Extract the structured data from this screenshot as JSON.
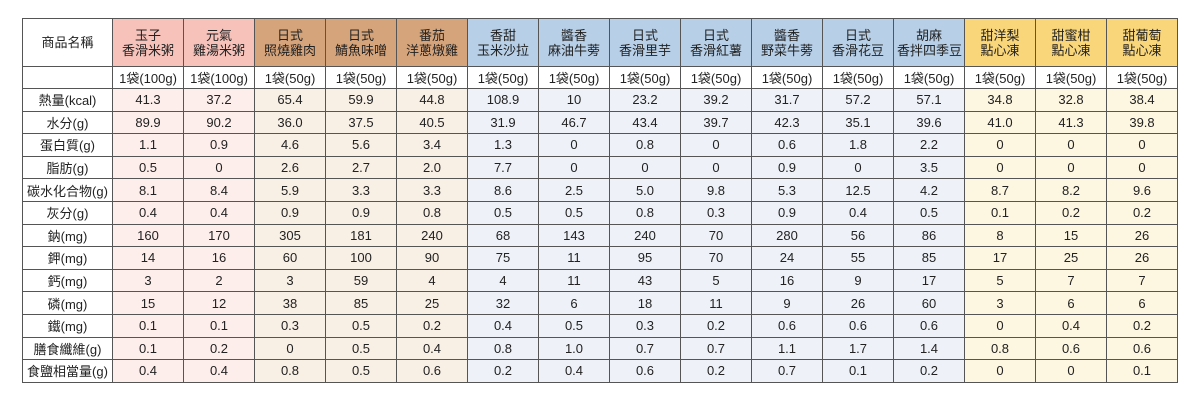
{
  "table": {
    "corner": "商品名稱",
    "products": [
      [
        "玉子",
        "香滑米粥"
      ],
      [
        "元氣",
        "雞湯米粥"
      ],
      [
        "日式",
        "照燒雞肉"
      ],
      [
        "日式",
        "鯖魚味噌"
      ],
      [
        "番茄",
        "洋蔥燉雞"
      ],
      [
        "香甜",
        "玉米沙拉"
      ],
      [
        "醬香",
        "麻油牛蒡"
      ],
      [
        "日式",
        "香滑里芋"
      ],
      [
        "日式",
        "香滑紅薯"
      ],
      [
        "醬香",
        "野菜牛蒡"
      ],
      [
        "日式",
        "香滑花豆"
      ],
      [
        "胡麻",
        "香拌四季豆"
      ],
      [
        "甜洋梨",
        "點心凍"
      ],
      [
        "甜蜜柑",
        "點心凍"
      ],
      [
        "甜葡萄",
        "點心凍"
      ]
    ],
    "units": [
      "1袋(100g)",
      "1袋(100g)",
      "1袋(50g)",
      "1袋(50g)",
      "1袋(50g)",
      "1袋(50g)",
      "1袋(50g)",
      "1袋(50g)",
      "1袋(50g)",
      "1袋(50g)",
      "1袋(50g)",
      "1袋(50g)",
      "1袋(50g)",
      "1袋(50g)",
      "1袋(50g)"
    ],
    "rows": [
      {
        "label": "熱量(kcal)",
        "values": [
          "41.3",
          "37.2",
          "65.4",
          "59.9",
          "44.8",
          "108.9",
          "10",
          "23.2",
          "39.2",
          "31.7",
          "57.2",
          "57.1",
          "34.8",
          "32.8",
          "38.4"
        ]
      },
      {
        "label": "水分(g)",
        "values": [
          "89.9",
          "90.2",
          "36.0",
          "37.5",
          "40.5",
          "31.9",
          "46.7",
          "43.4",
          "39.7",
          "42.3",
          "35.1",
          "39.6",
          "41.0",
          "41.3",
          "39.8"
        ]
      },
      {
        "label": "蛋白質(g)",
        "values": [
          "1.1",
          "0.9",
          "4.6",
          "5.6",
          "3.4",
          "1.3",
          "0",
          "0.8",
          "0",
          "0.6",
          "1.8",
          "2.2",
          "0",
          "0",
          "0"
        ]
      },
      {
        "label": "脂肪(g)",
        "values": [
          "0.5",
          "0",
          "2.6",
          "2.7",
          "2.0",
          "7.7",
          "0",
          "0",
          "0",
          "0.9",
          "0",
          "3.5",
          "0",
          "0",
          "0"
        ]
      },
      {
        "label": "碳水化合物(g)",
        "values": [
          "8.1",
          "8.4",
          "5.9",
          "3.3",
          "3.3",
          "8.6",
          "2.5",
          "5.0",
          "9.8",
          "5.3",
          "12.5",
          "4.2",
          "8.7",
          "8.2",
          "9.6"
        ]
      },
      {
        "label": "灰分(g)",
        "values": [
          "0.4",
          "0.4",
          "0.9",
          "0.9",
          "0.8",
          "0.5",
          "0.5",
          "0.8",
          "0.3",
          "0.9",
          "0.4",
          "0.5",
          "0.1",
          "0.2",
          "0.2"
        ]
      },
      {
        "label": "鈉(mg)",
        "values": [
          "160",
          "170",
          "305",
          "181",
          "240",
          "68",
          "143",
          "240",
          "70",
          "280",
          "56",
          "86",
          "8",
          "15",
          "26"
        ]
      },
      {
        "label": "鉀(mg)",
        "values": [
          "14",
          "16",
          "60",
          "100",
          "90",
          "75",
          "11",
          "95",
          "70",
          "24",
          "55",
          "85",
          "17",
          "25",
          "26"
        ]
      },
      {
        "label": "鈣(mg)",
        "values": [
          "3",
          "2",
          "3",
          "59",
          "4",
          "4",
          "11",
          "43",
          "5",
          "16",
          "9",
          "17",
          "5",
          "7",
          "7"
        ]
      },
      {
        "label": "磷(mg)",
        "values": [
          "15",
          "12",
          "38",
          "85",
          "25",
          "32",
          "6",
          "18",
          "11",
          "9",
          "26",
          "60",
          "3",
          "6",
          "6"
        ]
      },
      {
        "label": "鐵(mg)",
        "values": [
          "0.1",
          "0.1",
          "0.3",
          "0.5",
          "0.2",
          "0.4",
          "0.5",
          "0.3",
          "0.2",
          "0.6",
          "0.6",
          "0.6",
          "0",
          "0.4",
          "0.2"
        ]
      },
      {
        "label": "膳食纖維(g)",
        "values": [
          "0.1",
          "0.2",
          "0",
          "0.5",
          "0.4",
          "0.8",
          "1.0",
          "0.7",
          "0.7",
          "1.1",
          "1.7",
          "1.4",
          "0.8",
          "0.6",
          "0.6"
        ]
      },
      {
        "label": "食鹽相當量(g)",
        "values": [
          "0.4",
          "0.4",
          "0.8",
          "0.5",
          "0.6",
          "0.2",
          "0.4",
          "0.6",
          "0.2",
          "0.7",
          "0.1",
          "0.2",
          "0",
          "0",
          "0.1"
        ]
      }
    ]
  }
}
